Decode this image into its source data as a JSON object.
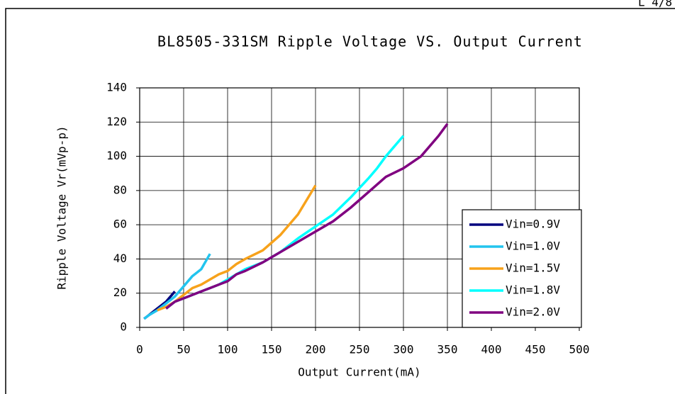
{
  "page_marker": "L 4/8",
  "chart_data": {
    "type": "line",
    "title": "BL8505-331SM Ripple Voltage VS. Output Current",
    "x_label": "Output Current(mA)",
    "y_label": "Ripple Voltage Vr(mVp-p)",
    "xlim": [
      0,
      500
    ],
    "xticks": [
      0,
      50,
      100,
      150,
      200,
      250,
      300,
      350,
      400,
      450,
      500
    ],
    "ylim": [
      0,
      140
    ],
    "yticks": [
      0,
      20,
      40,
      60,
      80,
      100,
      120,
      140
    ],
    "grid": true,
    "legend": "lower right",
    "series": [
      {
        "name": "Vin=0.9V",
        "color": "#00007f",
        "x": [
          5,
          10,
          20,
          30,
          40
        ],
        "values": [
          5,
          7,
          11,
          15,
          21
        ]
      },
      {
        "name": "Vin=1.0V",
        "color": "#22c4ee",
        "x": [
          5,
          10,
          20,
          30,
          40,
          50,
          60,
          70,
          80
        ],
        "values": [
          5,
          7,
          10,
          14,
          18,
          24,
          30,
          34,
          43
        ]
      },
      {
        "name": "Vin=1.5V",
        "color": "#f7a21b",
        "x": [
          20,
          30,
          40,
          50,
          60,
          70,
          80,
          90,
          100,
          110,
          120,
          140,
          160,
          180,
          200
        ],
        "values": [
          10,
          12,
          15,
          19,
          23,
          25,
          28,
          31,
          33,
          37,
          40,
          45,
          54,
          66,
          83
        ]
      },
      {
        "name": "Vin=1.8V",
        "color": "#00ffff",
        "x": [
          30,
          40,
          50,
          60,
          70,
          80,
          90,
          100,
          110,
          120,
          140,
          160,
          180,
          200,
          220,
          240,
          260,
          270,
          280,
          300
        ],
        "values": [
          11,
          15,
          17,
          19,
          21,
          23,
          25,
          28,
          31,
          34,
          38,
          44,
          52,
          59,
          66,
          76,
          87,
          93,
          100,
          112
        ]
      },
      {
        "name": "Vin=2.0V",
        "color": "#800080",
        "x": [
          30,
          40,
          50,
          60,
          70,
          80,
          90,
          100,
          110,
          120,
          140,
          160,
          180,
          200,
          220,
          240,
          260,
          280,
          300,
          320,
          340,
          350
        ],
        "values": [
          11,
          15,
          17,
          19,
          21,
          23,
          25,
          27,
          31,
          33,
          38,
          44,
          50,
          56,
          62,
          70,
          79,
          88,
          93,
          100,
          112,
          119
        ]
      }
    ]
  }
}
